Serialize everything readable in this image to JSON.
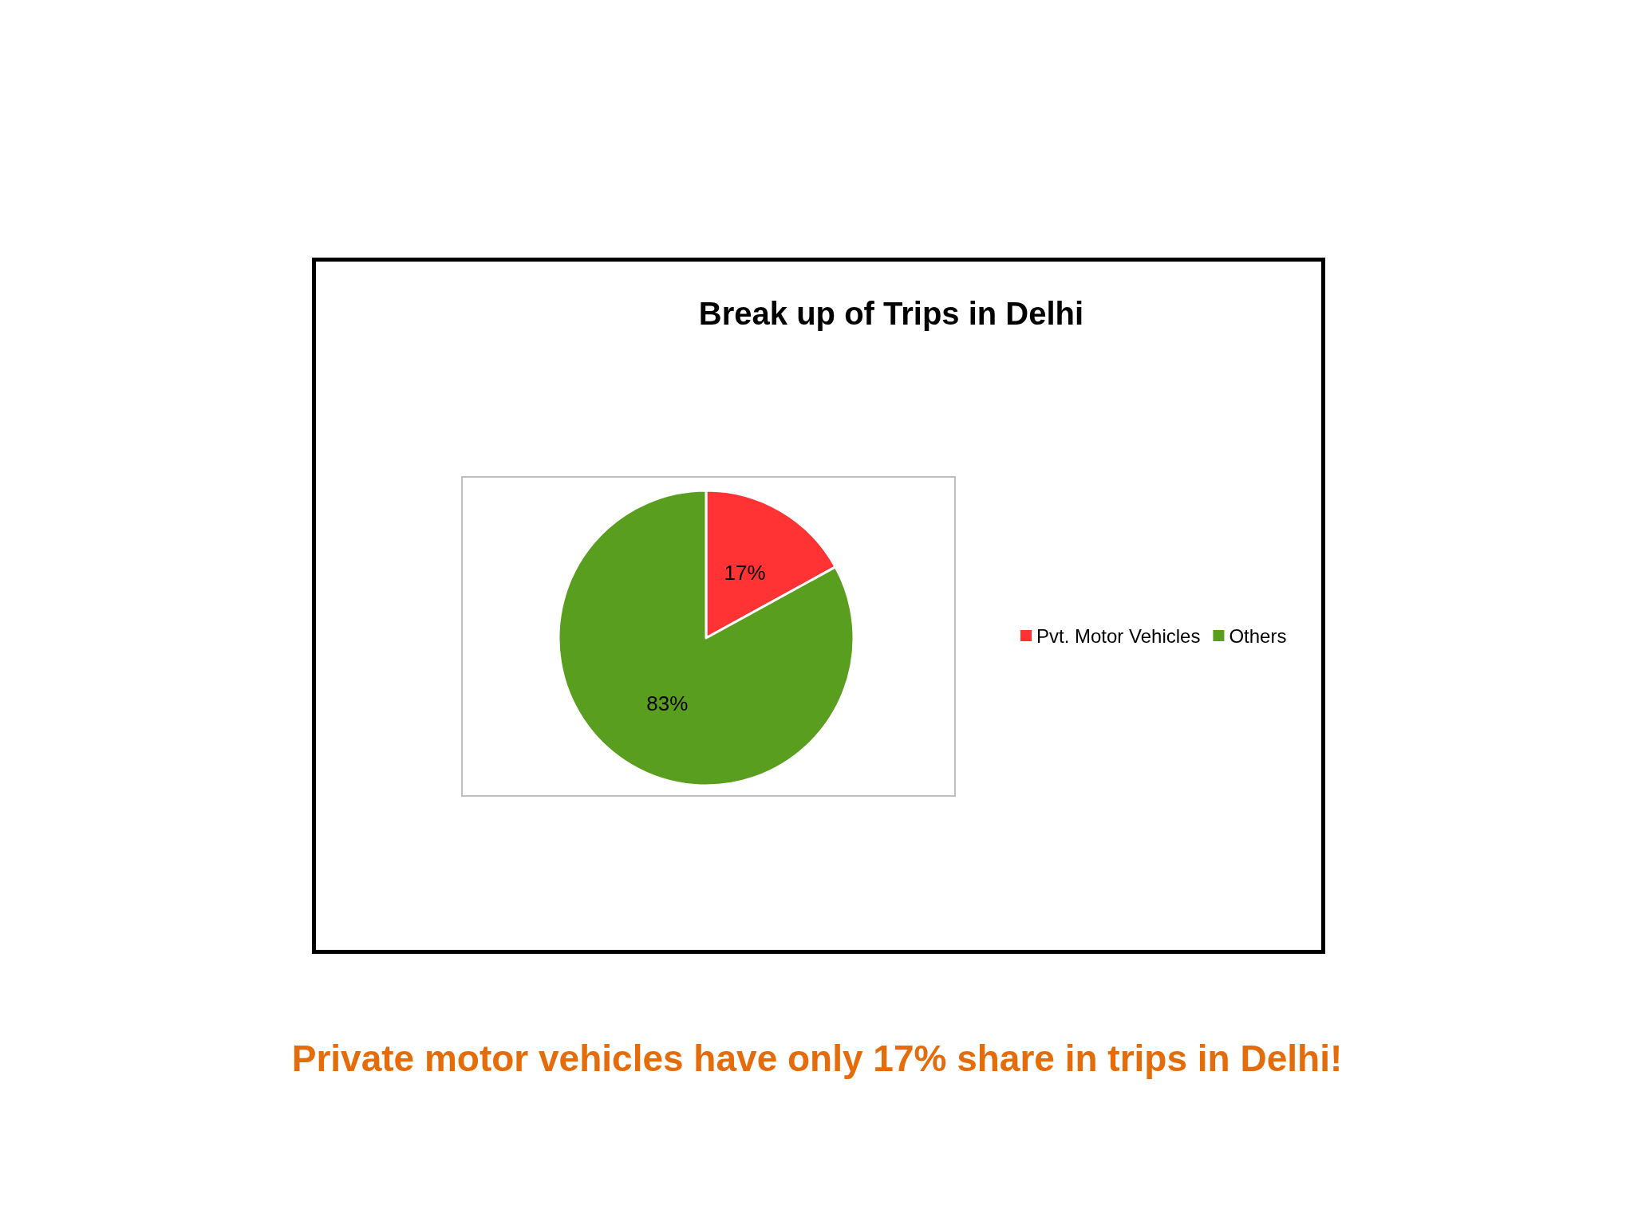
{
  "chart_data": {
    "type": "pie",
    "title": "Break up of Trips in Delhi",
    "categories": [
      "Pvt. Motor Vehicles",
      "Others"
    ],
    "values": [
      17,
      83
    ],
    "colors": [
      "#ff3333",
      "#5a9e1f"
    ],
    "value_labels": [
      "17%",
      "83%"
    ],
    "legend": "right",
    "annotations": [
      "Private motor vehicles have only 17% share in trips in Delhi!"
    ]
  }
}
